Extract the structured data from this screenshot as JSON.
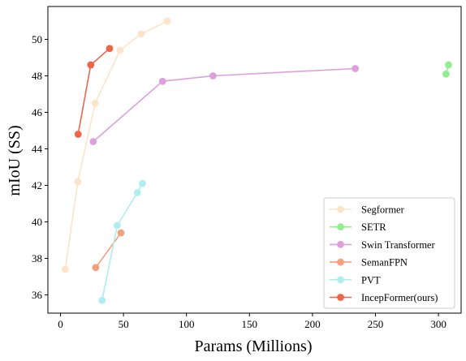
{
  "chart_data": {
    "type": "line",
    "title": "",
    "xlabel": "Params (Millions)",
    "ylabel": "mIoU (SS)",
    "xlim": [
      -10,
      318
    ],
    "ylim": [
      35,
      51.8
    ],
    "xticks": [
      0,
      50,
      100,
      150,
      200,
      250,
      300
    ],
    "yticks": [
      36,
      38,
      40,
      42,
      44,
      46,
      48,
      50
    ],
    "grid": false,
    "legend_position": "lower-right",
    "series": [
      {
        "name": "Segformer",
        "color": "#fde3c8",
        "points": [
          [
            3.8,
            37.4
          ],
          [
            13.7,
            42.2
          ],
          [
            27.5,
            46.5
          ],
          [
            47.3,
            49.4
          ],
          [
            64.1,
            50.3
          ],
          [
            84.7,
            51.0
          ]
        ]
      },
      {
        "name": "SETR",
        "color": "#90ee90",
        "points": [
          [
            308,
            48.6
          ],
          [
            306,
            48.1
          ]
        ]
      },
      {
        "name": "Swin Transformer",
        "color": "#dda0dd",
        "points": [
          [
            26,
            44.4
          ],
          [
            81,
            47.7
          ],
          [
            121,
            48.0
          ],
          [
            234,
            48.4
          ]
        ]
      },
      {
        "name": "SemanFPN",
        "color": "#f4a07e",
        "points": [
          [
            28,
            37.5
          ],
          [
            48,
            39.4
          ]
        ]
      },
      {
        "name": "PVT",
        "color": "#afeeee",
        "points": [
          [
            33,
            35.7
          ],
          [
            45,
            39.8
          ],
          [
            61,
            41.6
          ],
          [
            65,
            42.1
          ]
        ]
      },
      {
        "name": "IncepFormer(ours)",
        "color": "#f0654a",
        "points": [
          [
            14,
            44.8
          ],
          [
            24,
            48.6
          ],
          [
            39,
            49.5
          ]
        ]
      }
    ]
  }
}
